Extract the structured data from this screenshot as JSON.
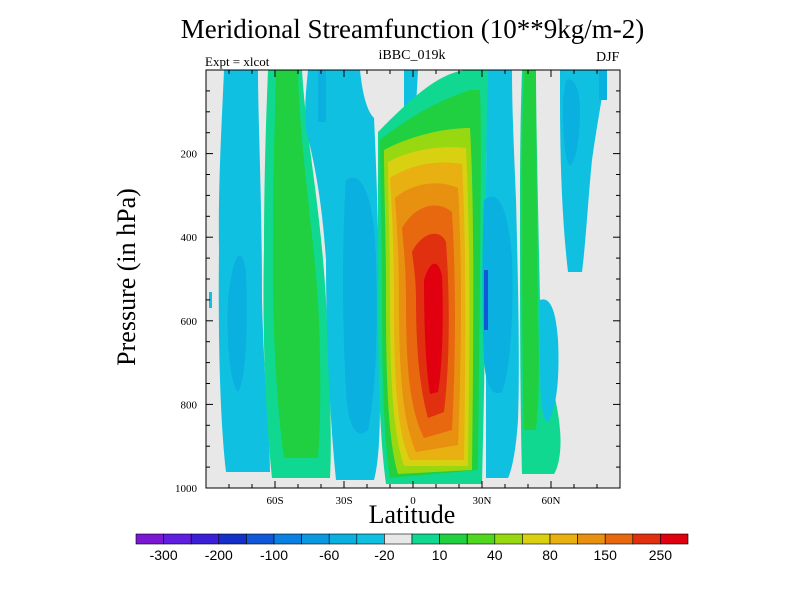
{
  "chart_data": {
    "type": "contour",
    "title": "Meridional Streamfunction (10**9kg/m-2)",
    "subtitle": "iBBC_019k",
    "left_note": "Expt = xlcot",
    "right_note": "DJF",
    "xlabel": "Latitude",
    "ylabel": "Pressure (in hPa)",
    "xlim": [
      -90,
      90
    ],
    "ylim": [
      1000,
      0
    ],
    "x_ticks": [
      {
        "value": -60,
        "label": "60S"
      },
      {
        "value": -30,
        "label": "30S"
      },
      {
        "value": 0,
        "label": "0"
      },
      {
        "value": 30,
        "label": "30N"
      },
      {
        "value": 60,
        "label": "60N"
      }
    ],
    "y_ticks": [
      {
        "value": 200,
        "label": "200"
      },
      {
        "value": 400,
        "label": "400"
      },
      {
        "value": 600,
        "label": "600"
      },
      {
        "value": 800,
        "label": "800"
      },
      {
        "value": 1000,
        "label": "1000"
      }
    ],
    "colorbar": {
      "colors": [
        "#7a18d4",
        "#5f1ee0",
        "#3b20d8",
        "#1530c8",
        "#1058d8",
        "#0a80e0",
        "#0a98e0",
        "#0ab0e0",
        "#10c0e0",
        "#e8e8e8",
        "#10d890",
        "#20d040",
        "#50d820",
        "#98d810",
        "#d8d010",
        "#e8b010",
        "#e89010",
        "#e86810",
        "#e03010",
        "#e00010"
      ],
      "labels": [
        {
          "value": -300,
          "label": "-300",
          "after_bin": 1
        },
        {
          "value": -200,
          "label": "-200",
          "after_bin": 3
        },
        {
          "value": -100,
          "label": "-100",
          "after_bin": 5
        },
        {
          "value": -60,
          "label": "-60",
          "after_bin": 7
        },
        {
          "value": -20,
          "label": "-20",
          "after_bin": 9
        },
        {
          "value": 10,
          "label": "10",
          "after_bin": 11
        },
        {
          "value": 40,
          "label": "40",
          "after_bin": 13
        },
        {
          "value": 80,
          "label": "80",
          "after_bin": 15
        },
        {
          "value": 150,
          "label": "150",
          "after_bin": 17
        },
        {
          "value": 250,
          "label": "250",
          "after_bin": 19
        }
      ]
    },
    "regions": [
      {
        "name": "sh-polar-cell",
        "sign": "negative",
        "level": "-10 to -20",
        "lat": [
          -80,
          -70
        ],
        "p": [
          0,
          970
        ],
        "color": "#10c0e0"
      },
      {
        "name": "sh-ferrel-cell",
        "sign": "positive",
        "level": "10 to 40",
        "lat": [
          -65,
          -50
        ],
        "p": [
          0,
          960
        ],
        "color": "#20d040"
      },
      {
        "name": "sh-polar-edge",
        "sign": "positive",
        "level": "0 to 10",
        "lat": [
          -68,
          -45
        ],
        "p": [
          700,
          980
        ],
        "color": "#10d890"
      },
      {
        "name": "sh-midlat-negative",
        "sign": "negative",
        "level": "-10 to -20",
        "lat": [
          -45,
          -30
        ],
        "p": [
          0,
          980
        ],
        "color": "#10c0e0"
      },
      {
        "name": "sh-midlat-inner",
        "sign": "negative",
        "level": "-20 to -40",
        "lat": [
          -35,
          -29
        ],
        "p": [
          250,
          900
        ],
        "color": "#0ab0e0"
      },
      {
        "name": "hadley-cell",
        "sign": "positive",
        "level": "10 to 300+",
        "lat": [
          -15,
          25
        ],
        "p": [
          0,
          1000
        ],
        "color": "#e00010",
        "peak_value": 300
      },
      {
        "name": "nh-midlat-negative",
        "sign": "negative",
        "level": "-10 to -40",
        "lat": [
          22,
          42
        ],
        "p": [
          0,
          990
        ],
        "color": "#0ab0e0"
      },
      {
        "name": "nh-ferrel-cell",
        "sign": "positive",
        "level": "10 to 40",
        "lat": [
          43,
          48
        ],
        "p": [
          0,
          900
        ],
        "color": "#20d040"
      },
      {
        "name": "nh-polar-cell",
        "sign": "negative",
        "level": "-10 to -40",
        "lat": [
          57,
          76
        ],
        "p": [
          0,
          470
        ],
        "color": "#0ab0e0"
      }
    ]
  }
}
